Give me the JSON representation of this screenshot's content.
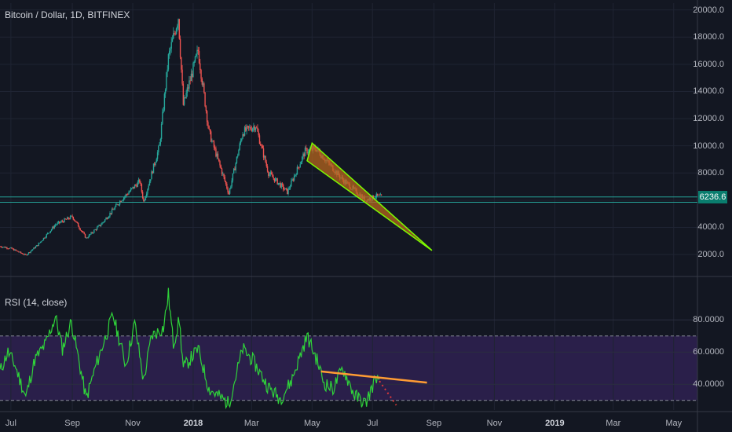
{
  "chart_data": [
    {
      "type": "candlestick",
      "title": "Bitcoin / Dollar, 1D, BITFINEX",
      "x_type": "date",
      "xlim": [
        "2017-06-20",
        "2019-05-25"
      ],
      "ylim": [
        500,
        20500
      ],
      "yticks": [
        2000,
        4000,
        6000,
        8000,
        10000,
        12000,
        14000,
        16000,
        18000,
        20000
      ],
      "ytick_labels": [
        "2000.0",
        "4000.0",
        "6000.0",
        "8000.0",
        "10000.0",
        "12000.0",
        "14000.0",
        "16000.0",
        "18000.0",
        "20000.0"
      ],
      "last_price": 6236.6,
      "last_price_label": "6236.6",
      "grid": true,
      "up_color": "#26a69a",
      "down_color": "#ef5350",
      "series": [
        {
          "values": [
            {
              "date": "2017-06-20",
              "value": 2600
            },
            {
              "date": "2017-07-01",
              "value": 2450
            },
            {
              "date": "2017-07-16",
              "value": 1950
            },
            {
              "date": "2017-07-28",
              "value": 2700
            },
            {
              "date": "2017-08-15",
              "value": 4200
            },
            {
              "date": "2017-09-01",
              "value": 4800
            },
            {
              "date": "2017-09-15",
              "value": 3200
            },
            {
              "date": "2017-10-01",
              "value": 4300
            },
            {
              "date": "2017-10-20",
              "value": 6000
            },
            {
              "date": "2017-11-08",
              "value": 7400
            },
            {
              "date": "2017-11-12",
              "value": 5900
            },
            {
              "date": "2017-11-28",
              "value": 10000
            },
            {
              "date": "2017-12-07",
              "value": 16500
            },
            {
              "date": "2017-12-17",
              "value": 19500
            },
            {
              "date": "2017-12-22",
              "value": 13000
            },
            {
              "date": "2018-01-06",
              "value": 17000
            },
            {
              "date": "2018-01-17",
              "value": 11000
            },
            {
              "date": "2018-02-06",
              "value": 6500
            },
            {
              "date": "2018-02-20",
              "value": 11000
            },
            {
              "date": "2018-03-05",
              "value": 11500
            },
            {
              "date": "2018-03-18",
              "value": 8000
            },
            {
              "date": "2018-04-06",
              "value": 6600
            },
            {
              "date": "2018-04-24",
              "value": 9600
            },
            {
              "date": "2018-05-05",
              "value": 9800
            },
            {
              "date": "2018-06-01",
              "value": 7500
            },
            {
              "date": "2018-06-24",
              "value": 6000
            },
            {
              "date": "2018-07-05",
              "value": 6300
            },
            {
              "date": "2018-07-10",
              "value": 6236.6
            }
          ]
        }
      ],
      "annotations": [
        {
          "type": "horizontal_line",
          "value": 6236.6,
          "color": "#26a69a"
        },
        {
          "type": "horizontal_line",
          "value": 5850,
          "color": "#26a69a"
        },
        {
          "type": "falling_wedge",
          "fill": "#b5651d",
          "stroke": "#7cfc00",
          "points": [
            {
              "date": "2018-05-01",
              "value": 10200
            },
            {
              "date": "2018-08-30",
              "value": 2300
            },
            {
              "date": "2018-04-26",
              "value": 8900
            }
          ]
        }
      ]
    },
    {
      "type": "line",
      "title": "RSI (14, close)",
      "x_type": "date",
      "ylim": [
        24,
        106
      ],
      "yticks": [
        40,
        60,
        80
      ],
      "ytick_labels": [
        "40.0000",
        "60.0000",
        "80.0000"
      ],
      "bands": {
        "upper": 70,
        "lower": 30,
        "fill": "#2a1f4a"
      },
      "series": [
        {
          "color": "#2fd33a",
          "values": [
            {
              "date": "2017-06-20",
              "value": 48
            },
            {
              "date": "2017-06-28",
              "value": 60
            },
            {
              "date": "2017-07-05",
              "value": 52
            },
            {
              "date": "2017-07-16",
              "value": 32
            },
            {
              "date": "2017-07-25",
              "value": 55
            },
            {
              "date": "2017-08-05",
              "value": 65
            },
            {
              "date": "2017-08-15",
              "value": 82
            },
            {
              "date": "2017-08-22",
              "value": 62
            },
            {
              "date": "2017-08-31",
              "value": 79
            },
            {
              "date": "2017-09-15",
              "value": 31
            },
            {
              "date": "2017-09-25",
              "value": 52
            },
            {
              "date": "2017-10-12",
              "value": 83
            },
            {
              "date": "2017-10-25",
              "value": 52
            },
            {
              "date": "2017-11-03",
              "value": 78
            },
            {
              "date": "2017-11-12",
              "value": 42
            },
            {
              "date": "2017-11-20",
              "value": 70
            },
            {
              "date": "2017-12-02",
              "value": 75
            },
            {
              "date": "2017-12-07",
              "value": 96
            },
            {
              "date": "2017-12-12",
              "value": 65
            },
            {
              "date": "2017-12-18",
              "value": 80
            },
            {
              "date": "2017-12-22",
              "value": 50
            },
            {
              "date": "2018-01-06",
              "value": 62
            },
            {
              "date": "2018-01-17",
              "value": 37
            },
            {
              "date": "2018-02-06",
              "value": 28
            },
            {
              "date": "2018-02-20",
              "value": 62
            },
            {
              "date": "2018-03-02",
              "value": 55
            },
            {
              "date": "2018-03-18",
              "value": 38
            },
            {
              "date": "2018-03-30",
              "value": 31
            },
            {
              "date": "2018-04-10",
              "value": 42
            },
            {
              "date": "2018-04-26",
              "value": 70
            },
            {
              "date": "2018-05-06",
              "value": 55
            },
            {
              "date": "2018-05-13",
              "value": 41
            },
            {
              "date": "2018-05-22",
              "value": 37
            },
            {
              "date": "2018-06-01",
              "value": 50
            },
            {
              "date": "2018-06-13",
              "value": 33
            },
            {
              "date": "2018-06-24",
              "value": 28
            },
            {
              "date": "2018-07-05",
              "value": 45
            },
            {
              "date": "2018-07-08",
              "value": 39
            }
          ]
        }
      ],
      "annotations": [
        {
          "type": "trendline",
          "color": "#ff9c33",
          "points": [
            {
              "date": "2018-05-10",
              "value": 48
            },
            {
              "date": "2018-08-25",
              "value": 41
            }
          ]
        },
        {
          "type": "trendline",
          "color": "#e03a3a",
          "dashed": true,
          "points": [
            {
              "date": "2018-07-08",
              "value": 42
            },
            {
              "date": "2018-07-25",
              "value": 27
            }
          ]
        }
      ]
    }
  ],
  "x_axis": {
    "ticks": [
      {
        "label": "Jul",
        "date": "2017-07-01",
        "bold": false
      },
      {
        "label": "Sep",
        "date": "2017-09-01",
        "bold": false
      },
      {
        "label": "Nov",
        "date": "2017-11-01",
        "bold": false
      },
      {
        "label": "2018",
        "date": "2018-01-01",
        "bold": true
      },
      {
        "label": "Mar",
        "date": "2018-03-01",
        "bold": false
      },
      {
        "label": "May",
        "date": "2018-05-01",
        "bold": false
      },
      {
        "label": "Jul",
        "date": "2018-07-01",
        "bold": false
      },
      {
        "label": "Sep",
        "date": "2018-09-01",
        "bold": false
      },
      {
        "label": "Nov",
        "date": "2018-11-01",
        "bold": false
      },
      {
        "label": "2019",
        "date": "2019-01-01",
        "bold": true
      },
      {
        "label": "Mar",
        "date": "2019-03-01",
        "bold": false
      },
      {
        "label": "May",
        "date": "2019-05-01",
        "bold": false
      }
    ]
  }
}
